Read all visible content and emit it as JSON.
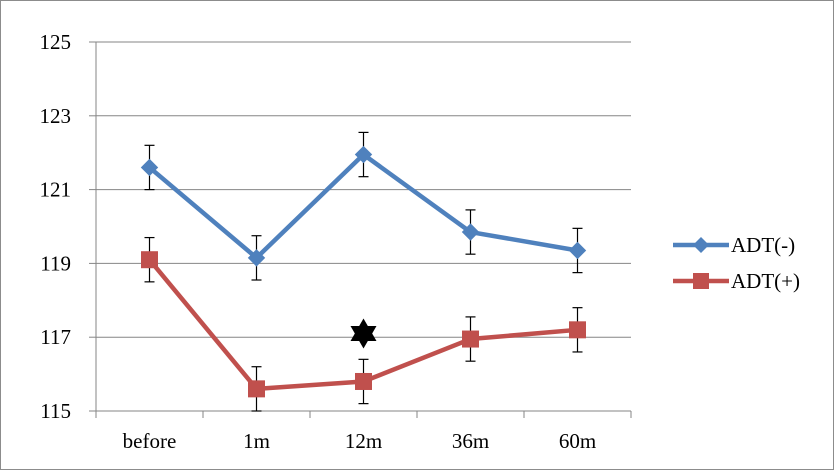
{
  "chart_data": {
    "type": "line",
    "title": "",
    "xlabel": "",
    "ylabel": "",
    "categories": [
      "before",
      "1m",
      "12m",
      "36m",
      "60m"
    ],
    "ylim": [
      115,
      125
    ],
    "yticks": [
      115,
      117,
      119,
      121,
      123,
      125
    ],
    "grid": "horizontal",
    "legend": "right",
    "series": [
      {
        "name": "ADT(-)",
        "color": "#4f81bd",
        "marker": "diamond",
        "values": [
          121.6,
          119.15,
          121.95,
          119.85,
          119.35
        ],
        "error": [
          0.6,
          0.6,
          0.6,
          0.6,
          0.6
        ]
      },
      {
        "name": "ADT(+)",
        "color": "#c0504d",
        "marker": "square",
        "values": [
          119.1,
          115.6,
          115.8,
          116.95,
          117.2
        ],
        "error": [
          0.6,
          0.6,
          0.6,
          0.6,
          0.6
        ]
      }
    ],
    "annotations": [
      {
        "symbol": "✡",
        "category": "12m",
        "y": 117.1,
        "color": "#000000"
      }
    ]
  }
}
